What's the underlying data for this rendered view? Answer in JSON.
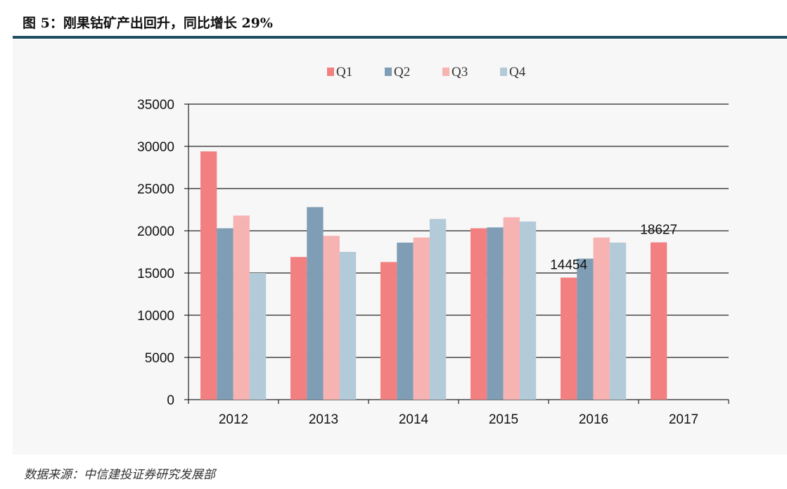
{
  "figure": {
    "title": "图 5：刚果钴矿产出回升，同比增长 29%",
    "source": "数据来源：中信建投证券研究发展部"
  },
  "chart_data": {
    "type": "bar",
    "categories": [
      "2012",
      "2013",
      "2014",
      "2015",
      "2016",
      "2017"
    ],
    "series": [
      {
        "name": "Q1",
        "color": "#f28080",
        "values": [
          29400,
          16900,
          16300,
          20300,
          14454,
          18627
        ]
      },
      {
        "name": "Q2",
        "color": "#7f9db5",
        "values": [
          20300,
          22800,
          18600,
          20400,
          16700,
          null
        ]
      },
      {
        "name": "Q3",
        "color": "#f7b2b2",
        "values": [
          21800,
          19400,
          19200,
          21600,
          19200,
          null
        ]
      },
      {
        "name": "Q4",
        "color": "#b3cad9",
        "values": [
          15000,
          17500,
          21400,
          21100,
          18600,
          null
        ]
      }
    ],
    "ylim": [
      0,
      35000
    ],
    "yticks": [
      0,
      5000,
      10000,
      15000,
      20000,
      25000,
      30000,
      35000
    ],
    "grid": true,
    "legend_position": "top",
    "annotations": [
      {
        "text": "14454",
        "category": "2016",
        "series": "Q1"
      },
      {
        "text": "18627",
        "category": "2017",
        "series": "Q1"
      }
    ]
  }
}
